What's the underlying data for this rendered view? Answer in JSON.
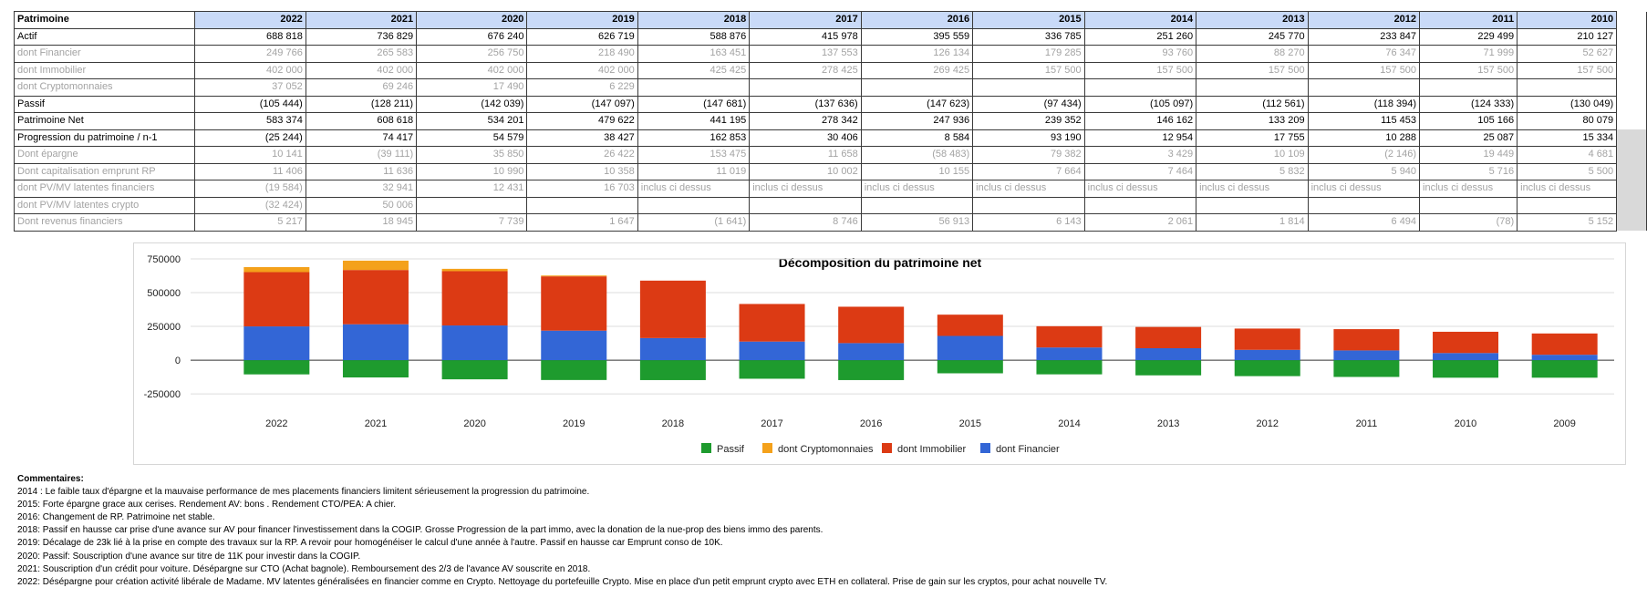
{
  "table": {
    "header_label": "Patrimoine",
    "years": [
      "2022",
      "2021",
      "2020",
      "2019",
      "2018",
      "2017",
      "2016",
      "2015",
      "2014",
      "2013",
      "2012",
      "2011",
      "2010"
    ],
    "rows": [
      {
        "label": "Actif",
        "style": "main",
        "values": [
          "688 818",
          "736 829",
          "676 240",
          "626 719",
          "588 876",
          "415 978",
          "395 559",
          "336 785",
          "251 260",
          "245 770",
          "233 847",
          "229 499",
          "210 127"
        ]
      },
      {
        "label": "dont Financier",
        "style": "gray",
        "values": [
          "249 766",
          "265 583",
          "256 750",
          "218 490",
          "163 451",
          "137 553",
          "126 134",
          "179 285",
          "93 760",
          "88 270",
          "76 347",
          "71 999",
          "52 627"
        ]
      },
      {
        "label": "dont Immobilier",
        "style": "gray",
        "values": [
          "402 000",
          "402 000",
          "402 000",
          "402 000",
          "425 425",
          "278 425",
          "269 425",
          "157 500",
          "157 500",
          "157 500",
          "157 500",
          "157 500",
          "157 500"
        ]
      },
      {
        "label": "dont Cryptomonnaies",
        "style": "gray",
        "values": [
          "37 052",
          "69 246",
          "17 490",
          "6 229",
          "",
          "",
          "",
          "",
          "",
          "",
          "",
          "",
          ""
        ]
      },
      {
        "label": "Passif",
        "style": "main",
        "values": [
          "(105 444)",
          "(128 211)",
          "(142 039)",
          "(147 097)",
          "(147 681)",
          "(137 636)",
          "(147 623)",
          "(97 434)",
          "(105 097)",
          "(112 561)",
          "(118 394)",
          "(124 333)",
          "(130 049)"
        ]
      },
      {
        "label": "Patrimoine Net",
        "style": "main",
        "values": [
          "583 374",
          "608 618",
          "534 201",
          "479 622",
          "441 195",
          "278 342",
          "247 936",
          "239 352",
          "146 162",
          "133 209",
          "115 453",
          "105 166",
          "80 079"
        ]
      },
      {
        "label": "Progression du patrimoine / n-1",
        "style": "main",
        "values": [
          "(25 244)",
          "74 417",
          "54 579",
          "38 427",
          "162 853",
          "30 406",
          "8 584",
          "93 190",
          "12 954",
          "17 755",
          "10 288",
          "25 087",
          "15 334"
        ]
      },
      {
        "label": "Dont épargne",
        "style": "gray",
        "values": [
          "10 141",
          "(39 111)",
          "35 850",
          "26 422",
          "153 475",
          "11 658",
          "(58 483)",
          "79 382",
          "3 429",
          "10 109",
          "(2 146)",
          "19 449",
          "4 681"
        ]
      },
      {
        "label": "Dont capitalisation emprunt RP",
        "style": "gray",
        "values": [
          "11 406",
          "11 636",
          "10 990",
          "10 358",
          "11 019",
          "10 002",
          "10 155",
          "7 664",
          "7 464",
          "5 832",
          "5 940",
          "5 716",
          "5 500"
        ]
      },
      {
        "label": "dont PV/MV latentes financiers",
        "style": "gray",
        "values": [
          "(19 584)",
          "32 941",
          "12 431",
          "16 703",
          "inclus ci dessus",
          "inclus ci dessus",
          "inclus ci dessus",
          "inclus ci dessus",
          "inclus ci dessus",
          "inclus ci dessus",
          "inclus ci dessus",
          "inclus ci dessus",
          "inclus ci dessus"
        ]
      },
      {
        "label": "dont PV/MV latentes crypto",
        "style": "gray",
        "values": [
          "(32 424)",
          "50 006",
          "",
          "",
          "",
          "",
          "",
          "",
          "",
          "",
          "",
          "",
          ""
        ]
      },
      {
        "label": "Dont revenus financiers",
        "style": "gray",
        "values": [
          "5 217",
          "18 945",
          "7 739",
          "1 647",
          "(1 641)",
          "8 746",
          "56 913",
          "6 143",
          "2 061",
          "1 814",
          "6 494",
          "(78)",
          "5 152"
        ]
      }
    ]
  },
  "chart_data": {
    "type": "bar",
    "stacked": true,
    "title": "Décomposition du patrimoine net",
    "categories": [
      "2022",
      "2021",
      "2020",
      "2019",
      "2018",
      "2017",
      "2016",
      "2015",
      "2014",
      "2013",
      "2012",
      "2011",
      "2010",
      "2009"
    ],
    "yticks": [
      750000,
      500000,
      250000,
      0,
      -250000
    ],
    "ytick_labels": [
      "750000",
      "500000",
      "250000",
      "0",
      "-250000"
    ],
    "ylim": [
      -310000,
      770000
    ],
    "series": [
      {
        "name": "Passif",
        "color": "#1e9b2e",
        "values": [
          -105444,
          -128211,
          -142039,
          -147097,
          -147681,
          -137636,
          -147623,
          -97434,
          -105097,
          -112561,
          -118394,
          -124333,
          -130049,
          -130000
        ]
      },
      {
        "name": "dont Cryptomonnaies",
        "color": "#f4a11b",
        "values": [
          37052,
          69246,
          17490,
          6229,
          0,
          0,
          0,
          0,
          0,
          0,
          0,
          0,
          0,
          0
        ]
      },
      {
        "name": "dont Immobilier",
        "color": "#dc3a14",
        "values": [
          402000,
          402000,
          402000,
          402000,
          425425,
          278425,
          269425,
          157500,
          157500,
          157500,
          157500,
          157500,
          157500,
          157500
        ]
      },
      {
        "name": "dont Financier",
        "color": "#3366d6",
        "values": [
          249766,
          265583,
          256750,
          218490,
          163451,
          137553,
          126134,
          179285,
          93760,
          88270,
          76347,
          71999,
          52627,
          40000
        ]
      }
    ],
    "stack_order": [
      "dont Financier",
      "dont Immobilier",
      "dont Cryptomonnaies"
    ],
    "legend": {
      "position": "bottom",
      "order": [
        "Passif",
        "dont Cryptomonnaies",
        "dont Immobilier",
        "dont Financier"
      ]
    }
  },
  "comments": {
    "title": "Commentaires:",
    "lines": [
      "2014 : Le faible taux d'épargne et la mauvaise performance de mes placements financiers limitent sérieusement la progression du patrimoine.",
      "2015: Forte épargne grace aux cerises. Rendement AV: bons . Rendement CTO/PEA: A chier.",
      "2016: Changement de RP. Patrimoine net stable.",
      "2018: Passif en hausse car prise d'une avance sur AV pour financer l'investissement dans la COGIP. Grosse Progression de la part immo, avec la donation de la nue-prop des biens immo des parents.",
      "2019: Décalage de 23k lié à la prise en compte des travaux sur la RP. A revoir pour homogénéiser le calcul d'une année à l'autre. Passif en hausse car Emprunt conso de 10K.",
      "2020: Passif: Souscription d'une avance sur titre de 11K pour investir dans la COGIP.",
      "2021: Souscription d'un crédit pour voiture. Désépargne sur CTO (Achat bagnole). Remboursement des 2/3 de l'avance AV souscrite en 2018.",
      "2022: Désépargne pour création activité libérale de Madame. MV latentes généralisées en financier comme en Crypto. Nettoyage du portefeuille Crypto. Mise en place d'un petit emprunt crypto avec ETH en collateral. Prise de gain sur les cryptos, pour achat nouvelle TV."
    ]
  }
}
